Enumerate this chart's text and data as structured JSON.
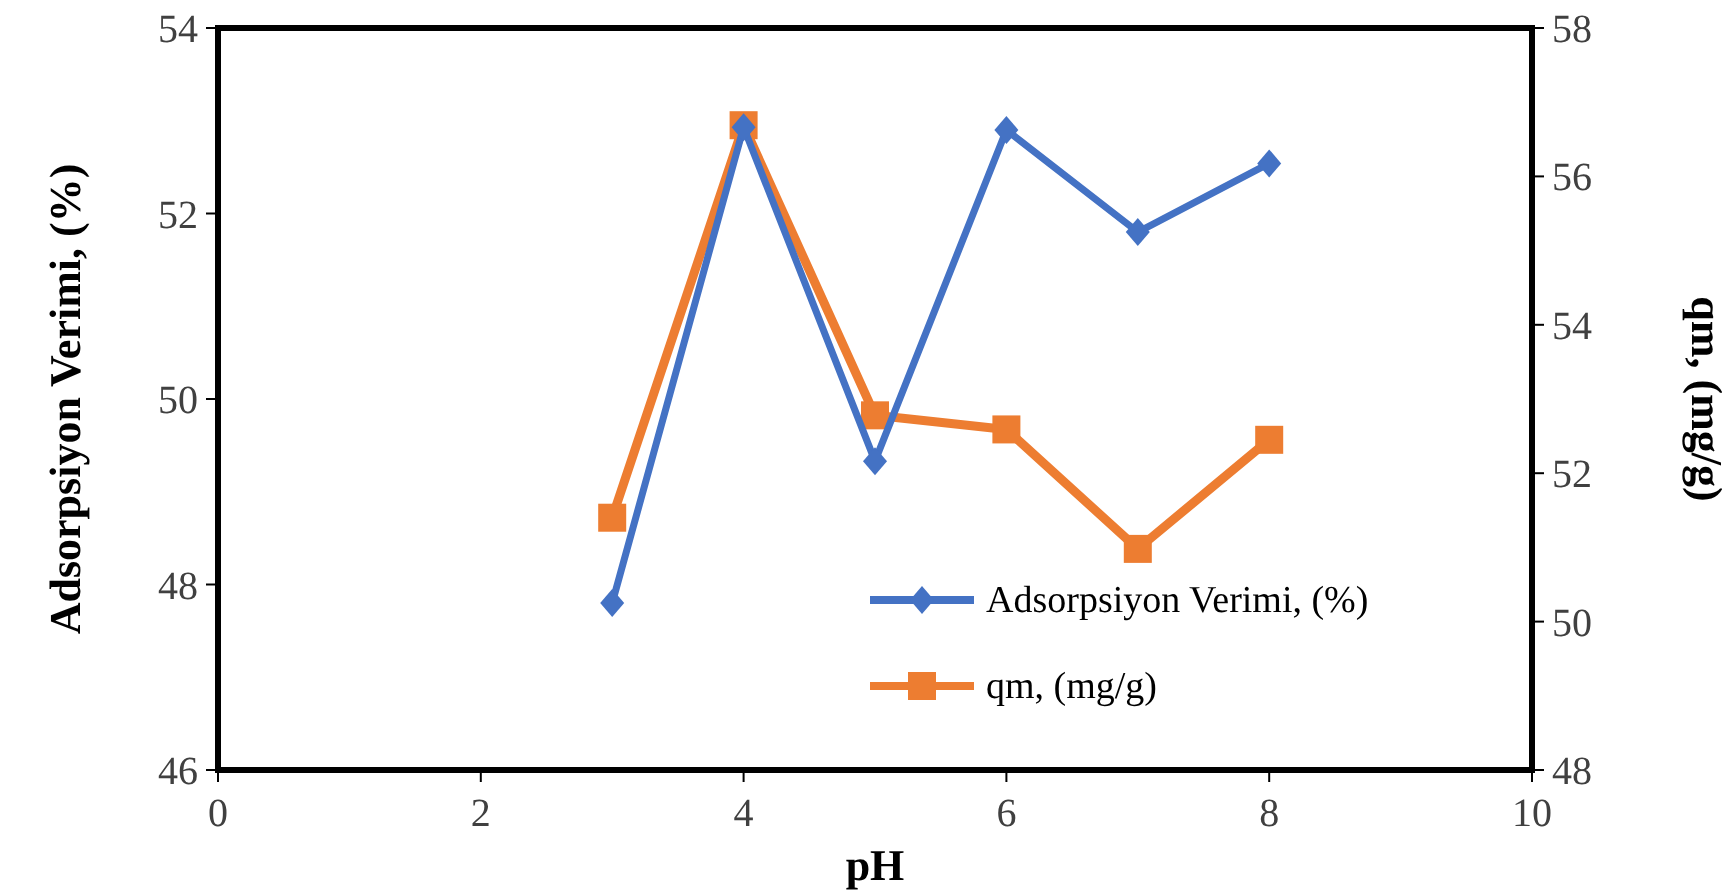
{
  "chart_data": {
    "type": "line",
    "xlabel": "pH",
    "ylabel": "Adsorpsiyon Verimi, (%)",
    "y2label": "qm, (mg/g)",
    "x": [
      3,
      4,
      5,
      6,
      7,
      8
    ],
    "series": [
      {
        "name": "Adsorpsiyon Verimi, (%)",
        "color": "#4472c4",
        "marker": "diamond",
        "values": [
          47.8,
          52.93,
          49.33,
          52.9,
          51.8,
          52.54
        ]
      },
      {
        "name": "qm, (mg/g)",
        "color": "#ed7d31",
        "marker": "square",
        "axis": "y2",
        "values": [
          51.4,
          56.69,
          52.78,
          52.59,
          50.98,
          52.45
        ]
      }
    ],
    "xlim": [
      0,
      10
    ],
    "xticks": [
      0,
      2,
      4,
      6,
      8,
      10
    ],
    "ylim": [
      46,
      54
    ],
    "yticks": [
      46,
      48,
      50,
      52,
      54
    ],
    "y2lim": [
      48,
      58
    ],
    "y2ticks": [
      48,
      50,
      52,
      54,
      56,
      58
    ],
    "grid": false,
    "legend": "bottom right",
    "line_style": "solid"
  }
}
